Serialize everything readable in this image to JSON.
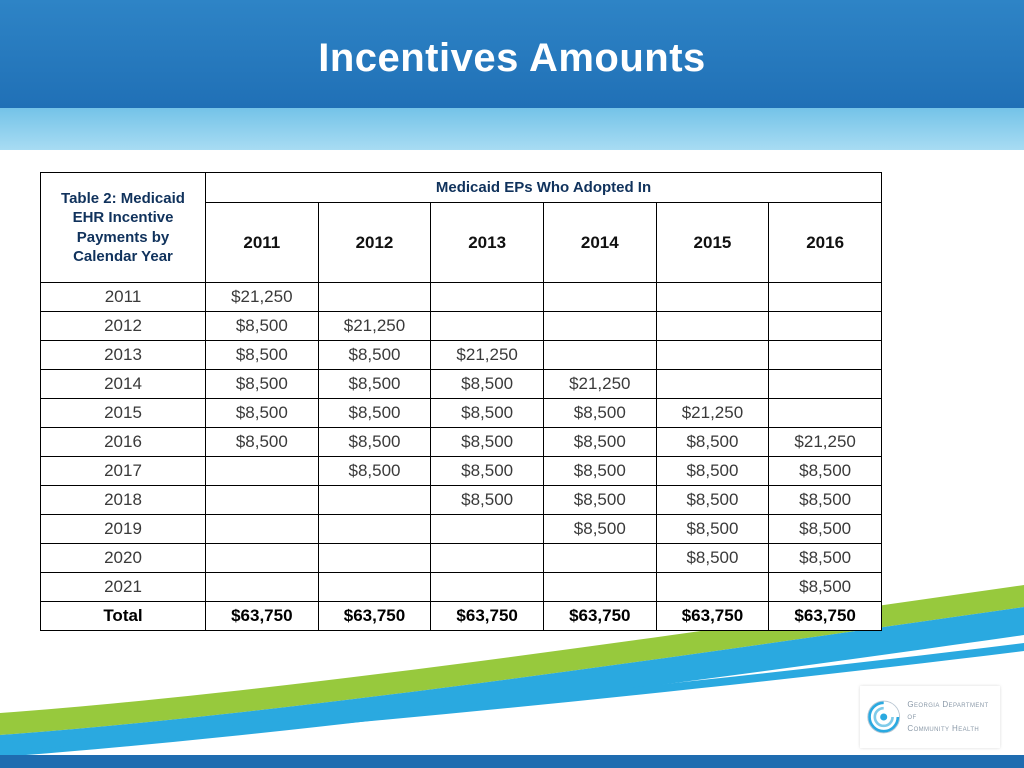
{
  "slide": {
    "title": "Incentives Amounts"
  },
  "table": {
    "corner_header": "Table 2: Medicaid EHR Incentive Payments by Calendar Year",
    "group_header": "Medicaid EPs Who Adopted In",
    "columns": [
      "2011",
      "2012",
      "2013",
      "2014",
      "2015",
      "2016"
    ],
    "rows": [
      {
        "label": "2011",
        "values": [
          "$21,250",
          "",
          "",
          "",
          "",
          ""
        ]
      },
      {
        "label": "2012",
        "values": [
          "$8,500",
          "$21,250",
          "",
          "",
          "",
          ""
        ]
      },
      {
        "label": "2013",
        "values": [
          "$8,500",
          "$8,500",
          "$21,250",
          "",
          "",
          ""
        ]
      },
      {
        "label": "2014",
        "values": [
          "$8,500",
          "$8,500",
          "$8,500",
          "$21,250",
          "",
          ""
        ]
      },
      {
        "label": "2015",
        "values": [
          "$8,500",
          "$8,500",
          "$8,500",
          "$8,500",
          "$21,250",
          ""
        ]
      },
      {
        "label": "2016",
        "values": [
          "$8,500",
          "$8,500",
          "$8,500",
          "$8,500",
          "$8,500",
          "$21,250"
        ]
      },
      {
        "label": "2017",
        "values": [
          "",
          "$8,500",
          "$8,500",
          "$8,500",
          "$8,500",
          "$8,500"
        ]
      },
      {
        "label": "2018",
        "values": [
          "",
          "",
          "$8,500",
          "$8,500",
          "$8,500",
          "$8,500"
        ]
      },
      {
        "label": "2019",
        "values": [
          "",
          "",
          "",
          "$8,500",
          "$8,500",
          "$8,500"
        ]
      },
      {
        "label": "2020",
        "values": [
          "",
          "",
          "",
          "",
          "$8,500",
          "$8,500"
        ]
      },
      {
        "label": "2021",
        "values": [
          "",
          "",
          "",
          "",
          "",
          "$8,500"
        ]
      },
      {
        "label": "Total",
        "values": [
          "$63,750",
          "$63,750",
          "$63,750",
          "$63,750",
          "$63,750",
          "$63,750"
        ],
        "bold": true
      }
    ]
  },
  "logo": {
    "line1": "Georgia Department of",
    "line2": "Community Health"
  },
  "colors": {
    "header_band": "#2575BB",
    "sub_band": "#8CCEEC",
    "table_header_cyan": "#00B7EF",
    "swoosh_green": "#97C93D",
    "swoosh_blue": "#2AA9E0",
    "bottom_bar": "#1F6CB0"
  }
}
